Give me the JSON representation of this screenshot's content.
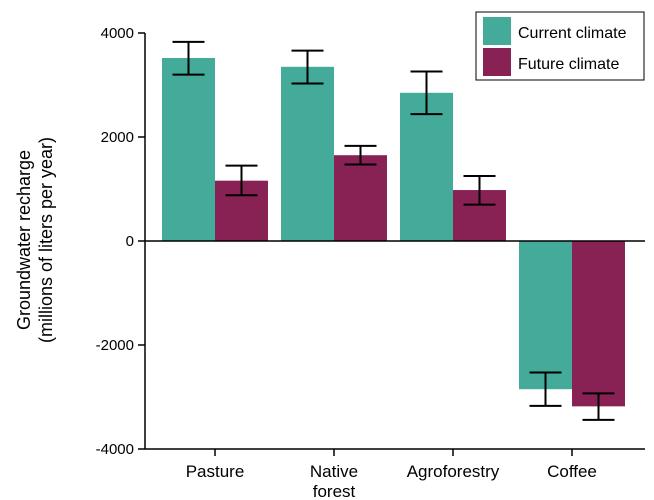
{
  "chart_data": {
    "type": "bar",
    "categories": [
      [
        "Pasture"
      ],
      [
        "Native",
        "forest"
      ],
      [
        "Agroforestry"
      ],
      [
        "Coffee"
      ]
    ],
    "series": [
      {
        "name": "Current climate",
        "color": "#44aa99",
        "values": [
          3520,
          3350,
          2850,
          -2850
        ],
        "error_low": [
          3200,
          3030,
          2440,
          -3170
        ],
        "error_high": [
          3830,
          3660,
          3260,
          -2530
        ]
      },
      {
        "name": "Future climate",
        "color": "#882255",
        "values": [
          1160,
          1650,
          980,
          -3180
        ],
        "error_low": [
          880,
          1470,
          700,
          -3440
        ],
        "error_high": [
          1450,
          1830,
          1250,
          -2930
        ]
      }
    ],
    "ylabel_lines": [
      "Groundwater recharge",
      "(millions of liters per year)"
    ],
    "ylim": [
      -4000,
      4000
    ],
    "yticks": [
      4000,
      2000,
      0,
      -2000,
      -4000
    ],
    "grid": false,
    "legend_position": "top-right"
  }
}
